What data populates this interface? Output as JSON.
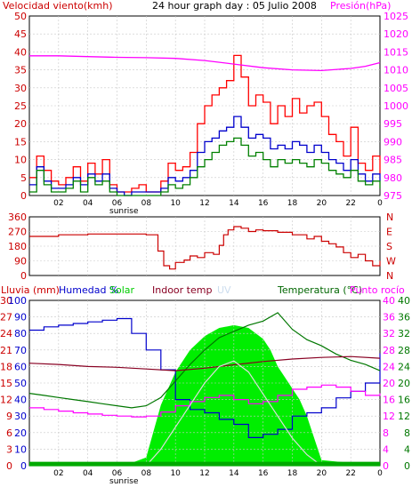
{
  "chart_data": [
    {
      "type": "line",
      "title": "24 hour graph day : 05 Julio 2008",
      "left_axis_label": "Velocidad viento(kmh)",
      "right_axis_label": "Presión(hPa)",
      "ylim_left": [
        0,
        50
      ],
      "ylim_right": [
        975,
        1025
      ],
      "left_ticks": [
        "0",
        "5",
        "10",
        "15",
        "20",
        "25",
        "30",
        "35",
        "40",
        "45",
        "50"
      ],
      "right_ticks": [
        "975",
        "980",
        "985",
        "990",
        "995",
        "1000",
        "1005",
        "1010",
        "1015",
        "1020",
        "1025"
      ],
      "x_ticks": [
        "02",
        "04",
        "06",
        "08",
        "10",
        "12",
        "14",
        "16",
        "18",
        "20",
        "22",
        "0"
      ],
      "x_range_hours": [
        0,
        24
      ],
      "sunrise_label": "sunrise",
      "sunrise_hour": 6.4,
      "grid": true,
      "series": [
        {
          "color": "#ff0000",
          "x": [
            0,
            0.5,
            1,
            1.5,
            2,
            2.5,
            3,
            3.5,
            4,
            4.5,
            5,
            5.5,
            6,
            6.5,
            7,
            7.5,
            8,
            8.5,
            9,
            9.5,
            10,
            10.5,
            11,
            11.5,
            12,
            12.5,
            13,
            13.5,
            14,
            14.5,
            15,
            15.5,
            16,
            16.5,
            17,
            17.5,
            18,
            18.5,
            19,
            19.5,
            20,
            20.5,
            21,
            21.5,
            22,
            22.5,
            23,
            23.5,
            24
          ],
          "values": [
            5,
            11,
            7,
            4,
            3,
            5,
            8,
            4,
            9,
            6,
            10,
            3,
            1,
            1,
            2,
            3,
            1,
            1,
            4,
            9,
            7,
            8,
            12,
            20,
            25,
            28,
            30,
            32,
            39,
            33,
            25,
            28,
            26,
            20,
            25,
            22,
            27,
            23,
            25,
            26,
            22,
            17,
            15,
            11,
            19,
            9,
            7,
            11,
            6
          ]
        },
        {
          "color": "#0000cc",
          "x": [
            0,
            0.5,
            1,
            1.5,
            2,
            2.5,
            3,
            3.5,
            4,
            4.5,
            5,
            5.5,
            6,
            6.5,
            7,
            7.5,
            8,
            8.5,
            9,
            9.5,
            10,
            10.5,
            11,
            11.5,
            12,
            12.5,
            13,
            13.5,
            14,
            14.5,
            15,
            15.5,
            16,
            16.5,
            17,
            17.5,
            18,
            18.5,
            19,
            19.5,
            20,
            20.5,
            21,
            21.5,
            22,
            22.5,
            23,
            23.5,
            24
          ],
          "values": [
            3,
            8,
            4,
            2,
            2,
            3,
            5,
            3,
            6,
            4,
            6,
            2,
            1,
            0,
            1,
            1,
            1,
            1,
            2,
            5,
            4,
            5,
            7,
            12,
            15,
            16,
            18,
            19,
            22,
            19,
            16,
            17,
            16,
            13,
            14,
            13,
            15,
            14,
            12,
            14,
            12,
            10,
            9,
            7,
            10,
            6,
            4,
            6,
            4
          ]
        },
        {
          "color": "#008000",
          "x": [
            0,
            0.5,
            1,
            1.5,
            2,
            2.5,
            3,
            3.5,
            4,
            4.5,
            5,
            5.5,
            6,
            6.5,
            7,
            7.5,
            8,
            8.5,
            9,
            9.5,
            10,
            10.5,
            11,
            11.5,
            12,
            12.5,
            13,
            13.5,
            14,
            14.5,
            15,
            15.5,
            16,
            16.5,
            17,
            17.5,
            18,
            18.5,
            19,
            19.5,
            20,
            20.5,
            21,
            21.5,
            22,
            22.5,
            23,
            23.5,
            24
          ],
          "values": [
            1,
            7,
            3,
            1,
            1,
            2,
            4,
            1,
            5,
            3,
            4,
            1,
            0,
            0,
            0,
            0,
            0,
            0,
            1,
            3,
            2,
            3,
            5,
            8,
            10,
            12,
            14,
            15,
            16,
            14,
            11,
            12,
            10,
            8,
            10,
            9,
            10,
            9,
            8,
            10,
            9,
            7,
            6,
            5,
            7,
            4,
            3,
            4,
            2
          ]
        },
        {
          "color": "#ff00ff",
          "axis": "right",
          "x": [
            0,
            2,
            4,
            6,
            8,
            10,
            12,
            14,
            16,
            18,
            20,
            22,
            23,
            24
          ],
          "values": [
            1013.9,
            1013.9,
            1013.7,
            1013.5,
            1013.4,
            1013.2,
            1012.6,
            1011.6,
            1010.6,
            1010.0,
            1009.8,
            1010.4,
            1011.0,
            1012.0
          ]
        }
      ]
    },
    {
      "type": "line",
      "left_ticks": [
        "0",
        "90",
        "180",
        "270",
        "360"
      ],
      "right_ticks": [
        "N",
        "W",
        "S",
        "E",
        "N"
      ],
      "ylim": [
        0,
        360
      ],
      "x_range_hours": [
        0,
        24
      ],
      "grid": true,
      "series": [
        {
          "color": "#cc0000",
          "x": [
            0,
            2,
            4,
            6,
            7,
            8,
            8.8,
            9.2,
            9.6,
            10,
            10.6,
            11,
            11.5,
            12,
            12.6,
            13,
            13.3,
            13.6,
            14,
            14.5,
            15,
            15.5,
            16,
            17,
            18,
            19,
            19.5,
            20,
            20.5,
            21,
            21.5,
            22,
            22.5,
            23,
            23.5,
            24
          ],
          "values": [
            240,
            250,
            255,
            255,
            255,
            250,
            150,
            60,
            40,
            80,
            95,
            120,
            110,
            140,
            130,
            185,
            250,
            280,
            300,
            290,
            270,
            280,
            275,
            265,
            250,
            225,
            240,
            210,
            195,
            175,
            140,
            110,
            130,
            90,
            60,
            90
          ]
        }
      ]
    },
    {
      "type": "line",
      "labels": [
        "Lluvia (mm)",
        "Humedad %",
        "Solar",
        "Indoor temp",
        "UV",
        "Temperatura (°C)",
        "Punto rocío"
      ],
      "left_ticks_rain": [
        "0",
        "3",
        "6",
        "9",
        "12",
        "15",
        "18",
        "21",
        "24",
        "27",
        "30"
      ],
      "left_ticks_humidity": [
        "0",
        "10",
        "20",
        "30",
        "40",
        "50",
        "60",
        "70",
        "80",
        "90",
        "100"
      ],
      "right_ticks_temp_a": [
        "0",
        "4",
        "8",
        "12",
        "16",
        "20",
        "24",
        "28",
        "32",
        "36",
        "40"
      ],
      "right_ticks_temp_b": [
        "0",
        "4",
        "8",
        "12",
        "16",
        "20",
        "24",
        "28",
        "32",
        "36",
        "40"
      ],
      "ylim_humidity": [
        0,
        100
      ],
      "ylim_temp": [
        0,
        40
      ],
      "x_ticks": [
        "02",
        "04",
        "06",
        "08",
        "10",
        "12",
        "14",
        "16",
        "18",
        "20",
        "22",
        "0"
      ],
      "x_range_hours": [
        0,
        24
      ],
      "sunrise_label": "sunrise",
      "sunrise_hour": 6.4,
      "grid": true,
      "series": [
        {
          "name": "Humedad %",
          "color": "#0000cc",
          "axis": "humidity",
          "x": [
            0,
            1,
            2,
            3,
            4,
            5,
            6,
            7,
            8,
            9,
            10,
            11,
            12,
            13,
            14,
            15,
            16,
            17,
            18,
            19,
            20,
            21,
            22,
            23,
            24
          ],
          "values": [
            82,
            84,
            85,
            86,
            87,
            88,
            89,
            80,
            70,
            58,
            40,
            34,
            32,
            28,
            25,
            17,
            19,
            22,
            30,
            32,
            35,
            41,
            45,
            50,
            68
          ]
        },
        {
          "name": "Temperatura (°C)",
          "color": "#007700",
          "axis": "temp",
          "x": [
            0,
            1,
            2,
            3,
            4,
            5,
            6,
            7,
            8,
            9,
            10,
            11,
            12,
            13,
            14,
            15,
            16,
            17,
            18,
            19,
            20,
            21,
            22,
            23,
            24
          ],
          "values": [
            17.5,
            17.0,
            16.5,
            16.0,
            15.5,
            15.0,
            14.5,
            14.0,
            14.5,
            16.5,
            20.5,
            24.5,
            28.0,
            31.0,
            32.5,
            34.0,
            35.0,
            37.0,
            33.0,
            30.5,
            29.0,
            27.0,
            25.5,
            24.5,
            23.0
          ]
        },
        {
          "name": "Indoor temp",
          "color": "#880022",
          "axis": "temp",
          "x": [
            0,
            2,
            4,
            6,
            8,
            10,
            12,
            14,
            16,
            18,
            20,
            22,
            24
          ],
          "values": [
            24.8,
            24.5,
            24.0,
            23.8,
            23.4,
            23.0,
            23.6,
            24.4,
            25.2,
            25.8,
            26.2,
            26.4,
            26.0
          ]
        },
        {
          "name": "Punto rocío",
          "color": "#ff00ff",
          "axis": "temp",
          "x": [
            0,
            1,
            2,
            3,
            4,
            5,
            6,
            7,
            8,
            9,
            10,
            11,
            12,
            13,
            14,
            15,
            16,
            17,
            18,
            19,
            20,
            21,
            22,
            23,
            24
          ],
          "values": [
            14.0,
            13.6,
            13.2,
            12.8,
            12.5,
            12.2,
            12.0,
            11.8,
            12.0,
            13.0,
            14.5,
            15.5,
            16.5,
            17.0,
            16.0,
            15.0,
            15.5,
            17.0,
            18.5,
            19.0,
            19.5,
            19.0,
            18.0,
            17.0,
            17.5
          ]
        },
        {
          "name": "Solar",
          "color": "#00ee00",
          "type": "area",
          "axis": "rain",
          "x": [
            0,
            6.5,
            8,
            9,
            10,
            11,
            12,
            13,
            14,
            15,
            16,
            16.5,
            17,
            17.5,
            18,
            18.5,
            19,
            20,
            24
          ],
          "values": [
            0,
            0,
            1.5,
            11,
            17,
            21,
            23.5,
            25,
            25.5,
            25,
            23,
            21,
            18,
            16,
            14,
            12,
            9,
            1,
            0
          ]
        },
        {
          "name": "UV",
          "color": "#dddddd",
          "axis": "rain",
          "x": [
            0,
            8,
            9,
            10,
            11,
            12,
            13,
            14,
            15,
            16,
            17,
            18,
            19,
            20,
            24
          ],
          "values": [
            0,
            0,
            3,
            7,
            11,
            15,
            18,
            19,
            17,
            13,
            9,
            5,
            2,
            0,
            0
          ]
        },
        {
          "name": "Lluvia (mm)",
          "color": "#00aa00",
          "axis": "rain",
          "x": [
            0,
            24
          ],
          "values": [
            0.3,
            0.3
          ]
        }
      ]
    }
  ]
}
